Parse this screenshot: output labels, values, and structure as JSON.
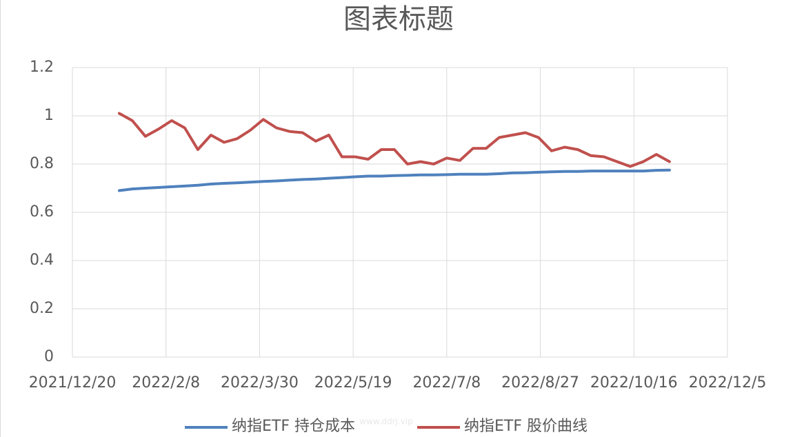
{
  "chart_data": {
    "type": "line",
    "title": "图表标题",
    "x": [
      "2022/1/14",
      "2022/1/21",
      "2022/1/28",
      "2022/2/4",
      "2022/2/11",
      "2022/2/18",
      "2022/2/25",
      "2022/3/4",
      "2022/3/11",
      "2022/3/18",
      "2022/3/25",
      "2022/4/1",
      "2022/4/8",
      "2022/4/15",
      "2022/4/22",
      "2022/4/29",
      "2022/5/6",
      "2022/5/13",
      "2022/5/20",
      "2022/5/27",
      "2022/6/3",
      "2022/6/10",
      "2022/6/17",
      "2022/6/24",
      "2022/7/1",
      "2022/7/8",
      "2022/7/15",
      "2022/7/22",
      "2022/7/29",
      "2022/8/5",
      "2022/8/12",
      "2022/8/19",
      "2022/8/26",
      "2022/9/2",
      "2022/9/9",
      "2022/9/16",
      "2022/9/23",
      "2022/9/30",
      "2022/10/7",
      "2022/10/14",
      "2022/10/21",
      "2022/10/28",
      "2022/11/4"
    ],
    "series": [
      {
        "name": "纳指ETF 持仓成本",
        "color": "#4f81bd",
        "values": [
          0.69,
          0.697,
          0.7,
          0.703,
          0.706,
          0.709,
          0.712,
          0.717,
          0.72,
          0.722,
          0.725,
          0.728,
          0.73,
          0.733,
          0.736,
          0.738,
          0.741,
          0.744,
          0.747,
          0.75,
          0.75,
          0.752,
          0.753,
          0.755,
          0.755,
          0.756,
          0.758,
          0.758,
          0.758,
          0.76,
          0.763,
          0.764,
          0.766,
          0.768,
          0.769,
          0.769,
          0.771,
          0.771,
          0.771,
          0.771,
          0.771,
          0.774,
          0.775
        ]
      },
      {
        "name": "纳指ETF 股价曲线",
        "color": "#c0504d",
        "values": [
          1.01,
          0.98,
          0.915,
          0.945,
          0.98,
          0.95,
          0.86,
          0.92,
          0.89,
          0.905,
          0.94,
          0.985,
          0.95,
          0.935,
          0.93,
          0.895,
          0.92,
          0.83,
          0.83,
          0.82,
          0.86,
          0.86,
          0.8,
          0.81,
          0.8,
          0.825,
          0.815,
          0.865,
          0.865,
          0.91,
          0.92,
          0.93,
          0.91,
          0.855,
          0.87,
          0.86,
          0.835,
          0.83,
          0.81,
          0.79,
          0.81,
          0.84,
          0.81
        ]
      }
    ],
    "xlim": [
      "2021/12/20",
      "2022/12/5"
    ],
    "xticks": [
      "2021/12/20",
      "2022/2/8",
      "2022/3/30",
      "2022/5/19",
      "2022/7/8",
      "2022/8/27",
      "2022/10/16",
      "2022/12/5"
    ],
    "ylim": [
      0,
      1.2
    ],
    "yticks": [
      0,
      0.2,
      0.4,
      0.6,
      0.8,
      1,
      1.2
    ],
    "grid": true,
    "legend": "bottom",
    "watermark": "www.ddrj.vip"
  }
}
